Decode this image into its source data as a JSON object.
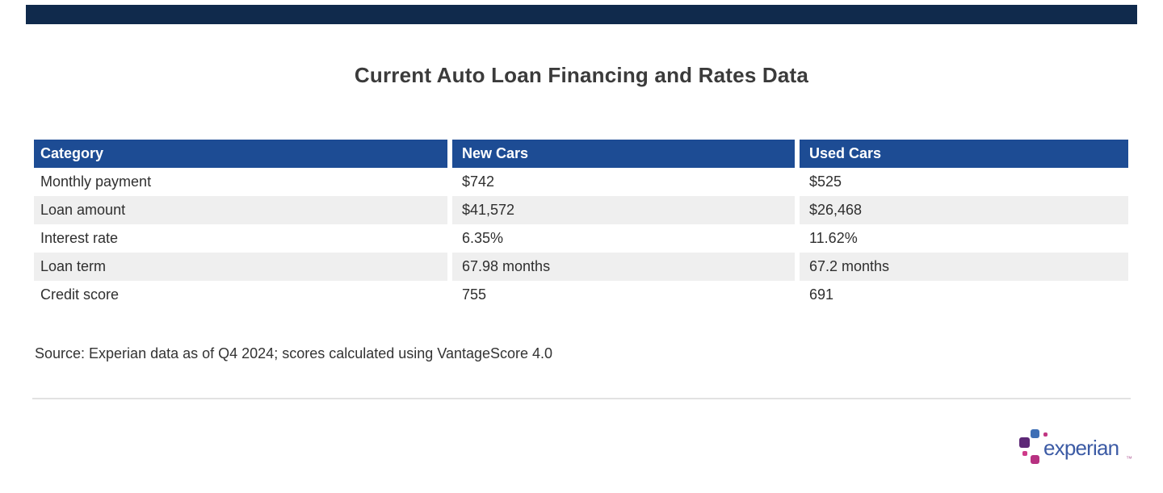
{
  "page": {
    "background": "#ffffff",
    "top_bar_color": "#102a4c"
  },
  "chart_data": {
    "type": "table",
    "title": "Current Auto Loan Financing and Rates Data",
    "columns": [
      "Category",
      "New Cars",
      "Used Cars"
    ],
    "rows": [
      [
        "Monthly payment",
        "$742",
        "$525"
      ],
      [
        "Loan amount",
        "$41,572",
        "$26,468"
      ],
      [
        "Interest rate",
        "6.35%",
        "11.62%"
      ],
      [
        "Loan term",
        "67.98 months",
        "67.2 months"
      ],
      [
        "Credit score",
        "755",
        "691"
      ]
    ],
    "source_note": "Source: Experian data as of Q4 2024; scores calculated using VantageScore 4.0",
    "layout": {
      "header_bg": "#1d4c94",
      "header_text_color": "#ffffff",
      "stripe_bg": "#efefef",
      "body_text_color": "#2f2f2f",
      "striped_row_indexes": [
        1,
        3
      ]
    }
  },
  "branding": {
    "logo_text": "experian",
    "trademark_symbol": "™",
    "colors": {
      "wordmark_blue": "#3c5ba5",
      "square_blue": "#3e6fb5",
      "square_purple": "#5d2877",
      "square_magenta": "#b73181",
      "dot_pink": "#cf3a8a"
    }
  }
}
